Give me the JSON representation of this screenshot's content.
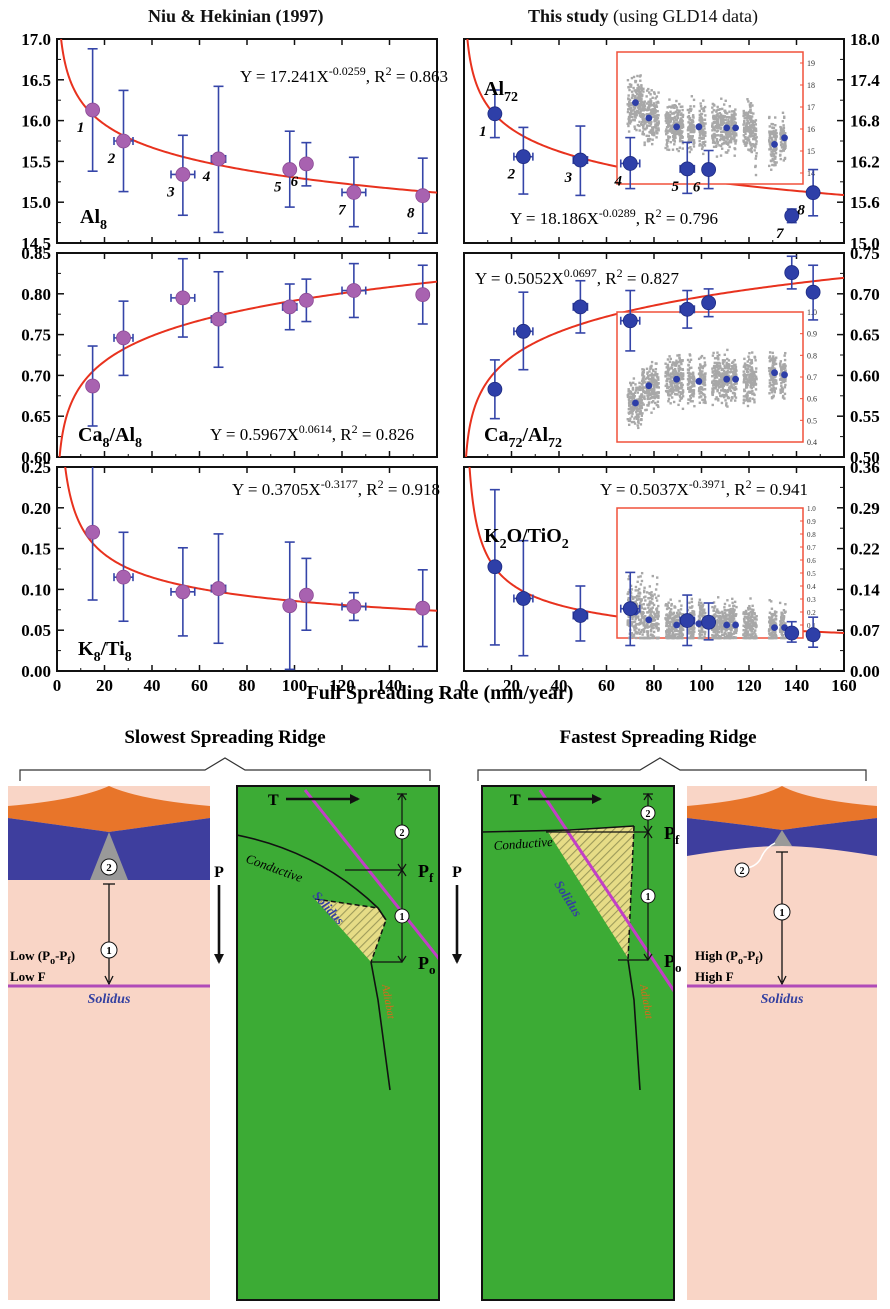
{
  "headers": {
    "left": "Niu & Hekinian (1997)",
    "right_bold": "This study",
    "right_light": "(using GLD14 data)"
  },
  "xlabel": "Full Spreading Rate (mm/year)",
  "colors": {
    "left_marker": "#A862B0",
    "right_marker": "#2E3FA8",
    "fit": "#E8321E",
    "error": "#3545A8",
    "inset_frame": "#F0503A",
    "inset_dots": "#A8A8A8"
  },
  "chart_data": [
    {
      "type": "scatter",
      "panel": "left-top",
      "label_main": "Al",
      "label_sub": "8",
      "equation": {
        "prefix": "Y = 17.241X",
        "exp": "-0.0259",
        "r2": ", R",
        "r2exp": "2",
        "r2val": " = 0.863"
      },
      "ylim": [
        14.5,
        17.0
      ],
      "xlim": [
        0,
        160
      ],
      "yticks": [
        "14.5",
        "15.0",
        "15.5",
        "16.0",
        "16.5",
        "17.0"
      ],
      "fit": {
        "a": 17.241,
        "b": -0.0259
      },
      "points": [
        {
          "x": 15,
          "y": 16.13,
          "ylo": 15.38,
          "yhi": 16.88,
          "xerr": 0,
          "label": "1"
        },
        {
          "x": 28,
          "y": 15.75,
          "ylo": 15.13,
          "yhi": 16.37,
          "xerr": 4,
          "label": "2"
        },
        {
          "x": 53,
          "y": 15.34,
          "ylo": 14.84,
          "yhi": 15.82,
          "xerr": 5,
          "label": "3"
        },
        {
          "x": 68,
          "y": 15.53,
          "ylo": 14.63,
          "yhi": 16.42,
          "xerr": 3,
          "label": "4"
        },
        {
          "x": 98,
          "y": 15.4,
          "ylo": 14.94,
          "yhi": 15.87,
          "xerr": 0,
          "label": "5"
        },
        {
          "x": 105,
          "y": 15.47,
          "ylo": 15.2,
          "yhi": 15.73,
          "xerr": 0,
          "label": "6"
        },
        {
          "x": 125,
          "y": 15.12,
          "ylo": 14.7,
          "yhi": 15.55,
          "xerr": 5,
          "label": "7"
        },
        {
          "x": 154,
          "y": 15.08,
          "ylo": 14.62,
          "yhi": 15.54,
          "xerr": 0,
          "label": "8"
        }
      ]
    },
    {
      "type": "scatter",
      "panel": "right-top",
      "label_main": "Al",
      "label_sub": "72",
      "equation": {
        "prefix": "Y = 18.186X",
        "exp": "-0.0289",
        "r2": ", R",
        "r2exp": "2",
        "r2val": " = 0.796"
      },
      "ylim": [
        15.0,
        18.0
      ],
      "xlim": [
        0,
        160
      ],
      "yticks": [
        "15.0",
        "15.6",
        "16.2",
        "16.8",
        "17.4",
        "18.0"
      ],
      "fit": {
        "a": 18.186,
        "b": -0.0289
      },
      "points": [
        {
          "x": 13,
          "y": 16.9,
          "ylo": 16.55,
          "yhi": 17.25,
          "xerr": 0,
          "label": "1"
        },
        {
          "x": 25,
          "y": 16.27,
          "ylo": 15.72,
          "yhi": 16.7,
          "xerr": 4,
          "label": "2"
        },
        {
          "x": 49,
          "y": 16.22,
          "ylo": 15.7,
          "yhi": 16.72,
          "xerr": 3,
          "label": "3"
        },
        {
          "x": 70,
          "y": 16.17,
          "ylo": 15.8,
          "yhi": 16.55,
          "xerr": 4,
          "label": "4"
        },
        {
          "x": 94,
          "y": 16.09,
          "ylo": 15.73,
          "yhi": 16.48,
          "xerr": 3,
          "label": "5"
        },
        {
          "x": 103,
          "y": 16.08,
          "ylo": 15.8,
          "yhi": 16.36,
          "xerr": 0,
          "label": "6"
        },
        {
          "x": 138,
          "y": 15.4,
          "ylo": 15.3,
          "yhi": 15.5,
          "xerr": 0,
          "label": "7"
        },
        {
          "x": 147,
          "y": 15.74,
          "ylo": 15.4,
          "yhi": 16.08,
          "xerr": 0,
          "label": "8"
        }
      ],
      "inset": {
        "yticks": [
          "14",
          "15",
          "16",
          "17",
          "18",
          "19"
        ],
        "ylim": [
          13.5,
          19.5
        ],
        "means": [
          [
            13,
            17.2
          ],
          [
            25,
            16.5
          ],
          [
            50,
            16.1
          ],
          [
            70,
            16.1
          ],
          [
            95,
            16.05
          ],
          [
            103,
            16.05
          ],
          [
            138,
            15.3
          ],
          [
            147,
            15.6
          ]
        ]
      }
    },
    {
      "type": "scatter",
      "panel": "left-middle",
      "label_main": "Ca",
      "label_sub": "8",
      "label_main2": "/Al",
      "label_sub2": "8",
      "equation": {
        "prefix": "Y = 0.5967X",
        "exp": "0.0614",
        "r2": ", R",
        "r2exp": "2",
        "r2val": " = 0.826"
      },
      "ylim": [
        0.6,
        0.85
      ],
      "xlim": [
        0,
        160
      ],
      "yticks": [
        "0.60",
        "0.65",
        "0.70",
        "0.75",
        "0.80",
        "0.85"
      ],
      "fit": {
        "a": 0.5967,
        "b": 0.0614
      },
      "points": [
        {
          "x": 15,
          "y": 0.687,
          "ylo": 0.638,
          "yhi": 0.736,
          "xerr": 0
        },
        {
          "x": 28,
          "y": 0.746,
          "ylo": 0.7,
          "yhi": 0.791,
          "xerr": 4
        },
        {
          "x": 53,
          "y": 0.795,
          "ylo": 0.747,
          "yhi": 0.843,
          "xerr": 5
        },
        {
          "x": 68,
          "y": 0.769,
          "ylo": 0.71,
          "yhi": 0.827,
          "xerr": 3
        },
        {
          "x": 98,
          "y": 0.784,
          "ylo": 0.756,
          "yhi": 0.812,
          "xerr": 3
        },
        {
          "x": 105,
          "y": 0.792,
          "ylo": 0.766,
          "yhi": 0.818,
          "xerr": 0
        },
        {
          "x": 125,
          "y": 0.804,
          "ylo": 0.771,
          "yhi": 0.837,
          "xerr": 5
        },
        {
          "x": 154,
          "y": 0.799,
          "ylo": 0.763,
          "yhi": 0.835,
          "xerr": 0
        }
      ]
    },
    {
      "type": "scatter",
      "panel": "right-middle",
      "label_main": "Ca",
      "label_sub": "72",
      "label_main2": "/Al",
      "label_sub2": "72",
      "equation": {
        "prefix": "Y = 0.5052X",
        "exp": "0.0697",
        "r2": ", R",
        "r2exp": "2",
        "r2val": " = 0.827"
      },
      "ylim": [
        0.5,
        0.75
      ],
      "xlim": [
        0,
        160
      ],
      "yticks": [
        "0.50",
        "0.55",
        "0.60",
        "0.65",
        "0.70",
        "0.75"
      ],
      "fit": {
        "a": 0.5052,
        "b": 0.0697
      },
      "points": [
        {
          "x": 13,
          "y": 0.583,
          "ylo": 0.547,
          "yhi": 0.619,
          "xerr": 0
        },
        {
          "x": 25,
          "y": 0.654,
          "ylo": 0.607,
          "yhi": 0.702,
          "xerr": 4
        },
        {
          "x": 49,
          "y": 0.684,
          "ylo": 0.652,
          "yhi": 0.716,
          "xerr": 3
        },
        {
          "x": 70,
          "y": 0.667,
          "ylo": 0.63,
          "yhi": 0.704,
          "xerr": 4
        },
        {
          "x": 94,
          "y": 0.681,
          "ylo": 0.658,
          "yhi": 0.704,
          "xerr": 3
        },
        {
          "x": 103,
          "y": 0.689,
          "ylo": 0.672,
          "yhi": 0.706,
          "xerr": 0
        },
        {
          "x": 138,
          "y": 0.726,
          "ylo": 0.706,
          "yhi": 0.746,
          "xerr": 0
        },
        {
          "x": 147,
          "y": 0.702,
          "ylo": 0.668,
          "yhi": 0.735,
          "xerr": 0
        }
      ],
      "inset": {
        "yticks": [
          "0.4",
          "0.5",
          "0.6",
          "0.7",
          "0.8",
          "0.9",
          "1.0"
        ],
        "ylim": [
          0.4,
          1.0
        ],
        "means": [
          [
            13,
            0.58
          ],
          [
            25,
            0.66
          ],
          [
            50,
            0.69
          ],
          [
            70,
            0.68
          ],
          [
            95,
            0.69
          ],
          [
            103,
            0.69
          ],
          [
            138,
            0.72
          ],
          [
            147,
            0.71
          ]
        ]
      }
    },
    {
      "type": "scatter",
      "panel": "left-bottom",
      "label_main": "K",
      "label_sub": "8",
      "label_main2": "/Ti",
      "label_sub2": "8",
      "equation": {
        "prefix": "Y = 0.3705X",
        "exp": "-0.3177",
        "r2": ", R",
        "r2exp": "2",
        "r2val": " = 0.918"
      },
      "ylim": [
        0.0,
        0.25
      ],
      "xlim": [
        0,
        160
      ],
      "yticks": [
        "0.00",
        "0.05",
        "0.10",
        "0.15",
        "0.20",
        "0.25"
      ],
      "xticks": [
        "0",
        "20",
        "40",
        "60",
        "80",
        "100",
        "120",
        "140"
      ],
      "fit": {
        "a": 0.3705,
        "b": -0.3177
      },
      "points": [
        {
          "x": 15,
          "y": 0.17,
          "ylo": 0.087,
          "yhi": 0.255,
          "xerr": 0
        },
        {
          "x": 28,
          "y": 0.115,
          "ylo": 0.061,
          "yhi": 0.17,
          "xerr": 4
        },
        {
          "x": 53,
          "y": 0.097,
          "ylo": 0.043,
          "yhi": 0.151,
          "xerr": 5
        },
        {
          "x": 68,
          "y": 0.101,
          "ylo": 0.034,
          "yhi": 0.168,
          "xerr": 3
        },
        {
          "x": 98,
          "y": 0.08,
          "ylo": 0.002,
          "yhi": 0.158,
          "xerr": 0
        },
        {
          "x": 105,
          "y": 0.093,
          "ylo": 0.05,
          "yhi": 0.138,
          "xerr": 0
        },
        {
          "x": 125,
          "y": 0.079,
          "ylo": 0.062,
          "yhi": 0.096,
          "xerr": 5
        },
        {
          "x": 154,
          "y": 0.077,
          "ylo": 0.03,
          "yhi": 0.124,
          "xerr": 0
        }
      ]
    },
    {
      "type": "scatter",
      "panel": "right-bottom",
      "label_main": "K",
      "label_sub": "2",
      "label_main2": "O/TiO",
      "label_sub2": "2",
      "equation": {
        "prefix": "Y = 0.5037X",
        "exp": "-0.3971",
        "r2": ", R",
        "r2exp": "2",
        "r2val": " = 0.941"
      },
      "ylim": [
        0.0,
        0.36
      ],
      "xlim": [
        0,
        160
      ],
      "yticks": [
        "0.00",
        "0.07",
        "0.14",
        "0.22",
        "0.29",
        "0.36"
      ],
      "xticks": [
        "0",
        "20",
        "40",
        "60",
        "80",
        "100",
        "120",
        "140",
        "160"
      ],
      "fit": {
        "a": 0.5037,
        "b": -0.3971
      },
      "points": [
        {
          "x": 13,
          "y": 0.184,
          "ylo": 0.046,
          "yhi": 0.32,
          "xerr": 0
        },
        {
          "x": 25,
          "y": 0.128,
          "ylo": 0.027,
          "yhi": 0.23,
          "xerr": 4
        },
        {
          "x": 49,
          "y": 0.098,
          "ylo": 0.053,
          "yhi": 0.15,
          "xerr": 3
        },
        {
          "x": 70,
          "y": 0.11,
          "ylo": 0.045,
          "yhi": 0.174,
          "xerr": 4
        },
        {
          "x": 94,
          "y": 0.089,
          "ylo": 0.045,
          "yhi": 0.134,
          "xerr": 3
        },
        {
          "x": 103,
          "y": 0.086,
          "ylo": 0.055,
          "yhi": 0.12,
          "xerr": 0
        },
        {
          "x": 138,
          "y": 0.067,
          "ylo": 0.051,
          "yhi": 0.087,
          "xerr": 0
        },
        {
          "x": 147,
          "y": 0.064,
          "ylo": 0.042,
          "yhi": 0.095,
          "xerr": 0
        }
      ],
      "inset": {
        "yticks": [
          "0.0",
          "0.1",
          "0.2",
          "0.3",
          "0.4",
          "0.5",
          "0.6",
          "0.7",
          "0.8",
          "0.9",
          "1.0"
        ],
        "ylim": [
          0.0,
          1.0
        ],
        "means": [
          [
            13,
            0.2
          ],
          [
            25,
            0.14
          ],
          [
            50,
            0.1
          ],
          [
            70,
            0.11
          ],
          [
            95,
            0.1
          ],
          [
            103,
            0.1
          ],
          [
            138,
            0.08
          ],
          [
            147,
            0.08
          ]
        ]
      }
    }
  ],
  "diagram": {
    "left_title": "Slowest Spreading Ridge",
    "right_title": "Fastest Spreading Ridge",
    "T": "T",
    "P": "P",
    "conductive": "Conductive",
    "solidus": "Solidus",
    "adiabat": "Adiabat",
    "pf_main": "P",
    "pf_sub": "f",
    "po_main": "P",
    "po_sub": "o",
    "n1": "1",
    "n2": "2",
    "low_range_pre": "Low (P",
    "low_range_o": "o",
    "low_range_mid": "-P",
    "low_range_f": "f",
    "low_range_post": ")",
    "low_F": "Low F",
    "high_range_pre": "High (P",
    "high_range_o": "o",
    "high_range_mid": "-P",
    "high_range_f": "f",
    "high_range_post": ")",
    "high_F": "High F",
    "solidus_label": "Solidus"
  }
}
